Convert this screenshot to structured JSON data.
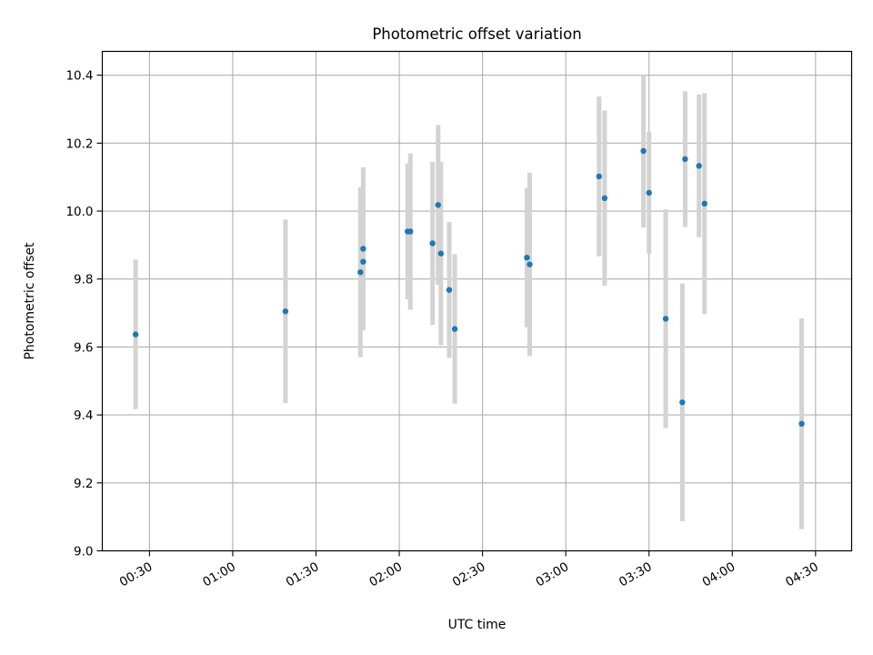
{
  "chart_data": {
    "type": "scatter",
    "title": "Photometric offset variation",
    "xlabel": "UTC time",
    "ylabel": "Photometric offset",
    "x_ticks": [
      "00:30",
      "01:00",
      "01:30",
      "02:00",
      "02:30",
      "03:00",
      "03:30",
      "04:00",
      "04:30"
    ],
    "y_ticks": [
      "9.0",
      "9.2",
      "9.4",
      "9.6",
      "9.8",
      "10.0",
      "10.2",
      "10.4"
    ],
    "xlim": [
      "00:13",
      "04:43"
    ],
    "ylim": [
      9.0,
      10.47
    ],
    "grid": true,
    "colors": {
      "point": "#1f77b4",
      "errorbar": "#d3d3d3",
      "grid": "#b0b0b0"
    },
    "points": [
      {
        "x": "00:25",
        "y": 9.637,
        "err": 0.22
      },
      {
        "x": "01:19",
        "y": 9.705,
        "err": 0.27
      },
      {
        "x": "01:46",
        "y": 9.82,
        "err": 0.25
      },
      {
        "x": "01:47",
        "y": 9.851,
        "err": 0.2
      },
      {
        "x": "01:47",
        "y": 9.889,
        "err": 0.24
      },
      {
        "x": "02:03",
        "y": 9.94,
        "err": 0.2
      },
      {
        "x": "02:04",
        "y": 9.94,
        "err": 0.23
      },
      {
        "x": "02:12",
        "y": 9.905,
        "err": 0.24
      },
      {
        "x": "02:14",
        "y": 10.018,
        "err": 0.235
      },
      {
        "x": "02:15",
        "y": 9.875,
        "err": 0.27
      },
      {
        "x": "02:18",
        "y": 9.768,
        "err": 0.2
      },
      {
        "x": "02:20",
        "y": 9.653,
        "err": 0.22
      },
      {
        "x": "02:46",
        "y": 9.863,
        "err": 0.205
      },
      {
        "x": "02:47",
        "y": 9.843,
        "err": 0.27
      },
      {
        "x": "03:12",
        "y": 10.102,
        "err": 0.235
      },
      {
        "x": "03:14",
        "y": 10.038,
        "err": 0.258
      },
      {
        "x": "03:28",
        "y": 10.177,
        "err": 0.225
      },
      {
        "x": "03:30",
        "y": 10.054,
        "err": 0.18
      },
      {
        "x": "03:36",
        "y": 9.683,
        "err": 0.322
      },
      {
        "x": "03:42",
        "y": 9.437,
        "err": 0.35
      },
      {
        "x": "03:43",
        "y": 10.153,
        "err": 0.2
      },
      {
        "x": "03:48",
        "y": 10.133,
        "err": 0.21
      },
      {
        "x": "03:50",
        "y": 10.022,
        "err": 0.325
      },
      {
        "x": "04:25",
        "y": 9.374,
        "err": 0.31
      }
    ]
  }
}
